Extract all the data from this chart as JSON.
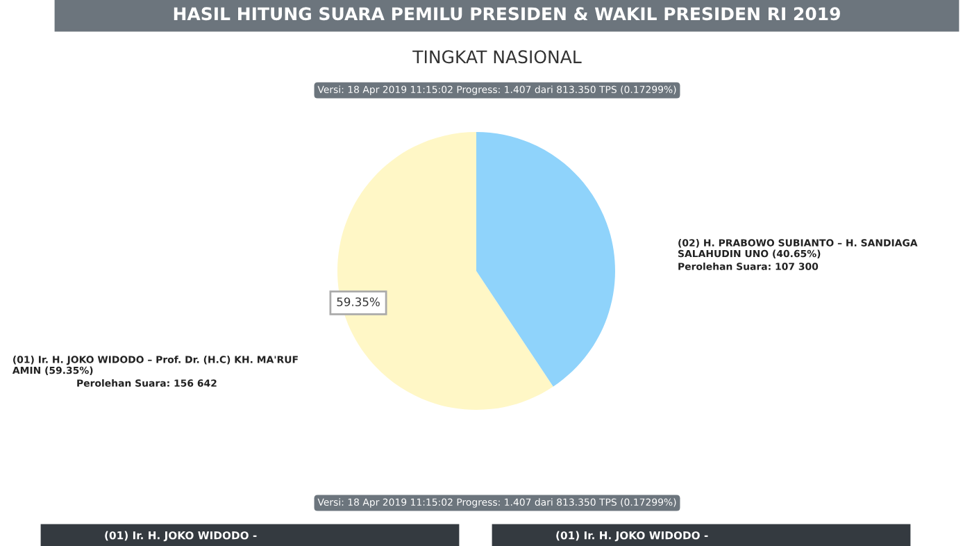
{
  "chart_data": {
    "type": "pie",
    "title": "HASIL HITUNG SUARA PEMILU PRESIDEN & WAKIL PRESIDEN RI 2019",
    "subtitle": "TINGKAT NASIONAL",
    "categories": [
      "(01) Ir. H. JOKO WIDODO – Prof. Dr. (H.C) KH. MA'RUF AMIN (59.35%)",
      "(02) H. PRABOWO SUBIANTO – H. SANDIAGA SALAHUDIN UNO (40.65%)"
    ],
    "values": [
      156642,
      107300
    ],
    "value_labels": [
      "Perolehan Suara: 156 642",
      "Perolehan Suara: 107 300"
    ],
    "colors": [
      "#fff7c6",
      "#8fd3fb"
    ],
    "legend": false,
    "annotations": [
      "Versi: 18 Apr 2019 11:15:02 Progress: 1.407 dari 813.350 TPS (0.17299%)",
      "59.35%",
      "Versi: 18 Apr 2019 11:15:02 Progress: 1.407 dari 813.350 TPS (0.17299%)",
      "(01) Ir. H. JOKO WIDODO -",
      "(01) Ir. H. JOKO WIDODO -"
    ]
  }
}
